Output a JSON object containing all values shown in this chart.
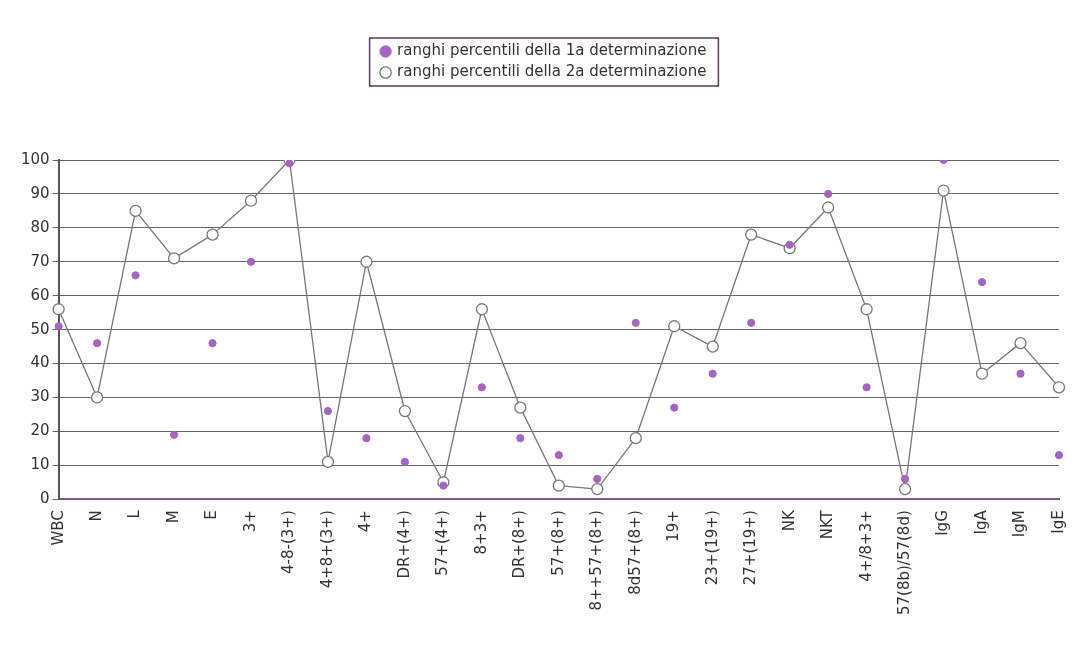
{
  "chart_data": {
    "type": "line",
    "categories": [
      "WBC",
      "N",
      "L",
      "M",
      "E",
      "3+",
      "4-8-(3+)",
      "4+8+(3+)",
      "4+",
      "DR+(4+)",
      "57+(4+)",
      "8+3+",
      "DR+(8+)",
      "57+(8+)",
      "8++57+(8+)",
      "8d57+(8+)",
      "19+",
      "23+(19+)",
      "27+(19+)",
      "NK",
      "NKT",
      "4+/8+3+",
      "57(8b)/57(8d)",
      "IgG",
      "IgA",
      "IgM",
      "IgE"
    ],
    "series": [
      {
        "name": "ranghi percentili della 1a determinazione",
        "type": "scatter",
        "color": "#a466c0",
        "values": [
          51,
          46,
          66,
          19,
          46,
          70,
          99,
          26,
          18,
          11,
          4,
          33,
          18,
          13,
          6,
          52,
          27,
          37,
          52,
          75,
          90,
          33,
          6,
          100,
          64,
          37,
          13
        ]
      },
      {
        "name": "ranghi percentili della 2a determinazione",
        "type": "line",
        "color": "#777777",
        "values": [
          56,
          30,
          85,
          71,
          78,
          88,
          100,
          11,
          70,
          26,
          5,
          56,
          27,
          4,
          3,
          18,
          51,
          45,
          78,
          74,
          86,
          56,
          3,
          91,
          37,
          46,
          33
        ]
      }
    ],
    "ylim": [
      0,
      100
    ],
    "yticks": [
      0,
      10,
      20,
      30,
      40,
      50,
      60,
      70,
      80,
      90,
      100
    ],
    "grid": "y",
    "legend": "top",
    "marker": "circle"
  }
}
